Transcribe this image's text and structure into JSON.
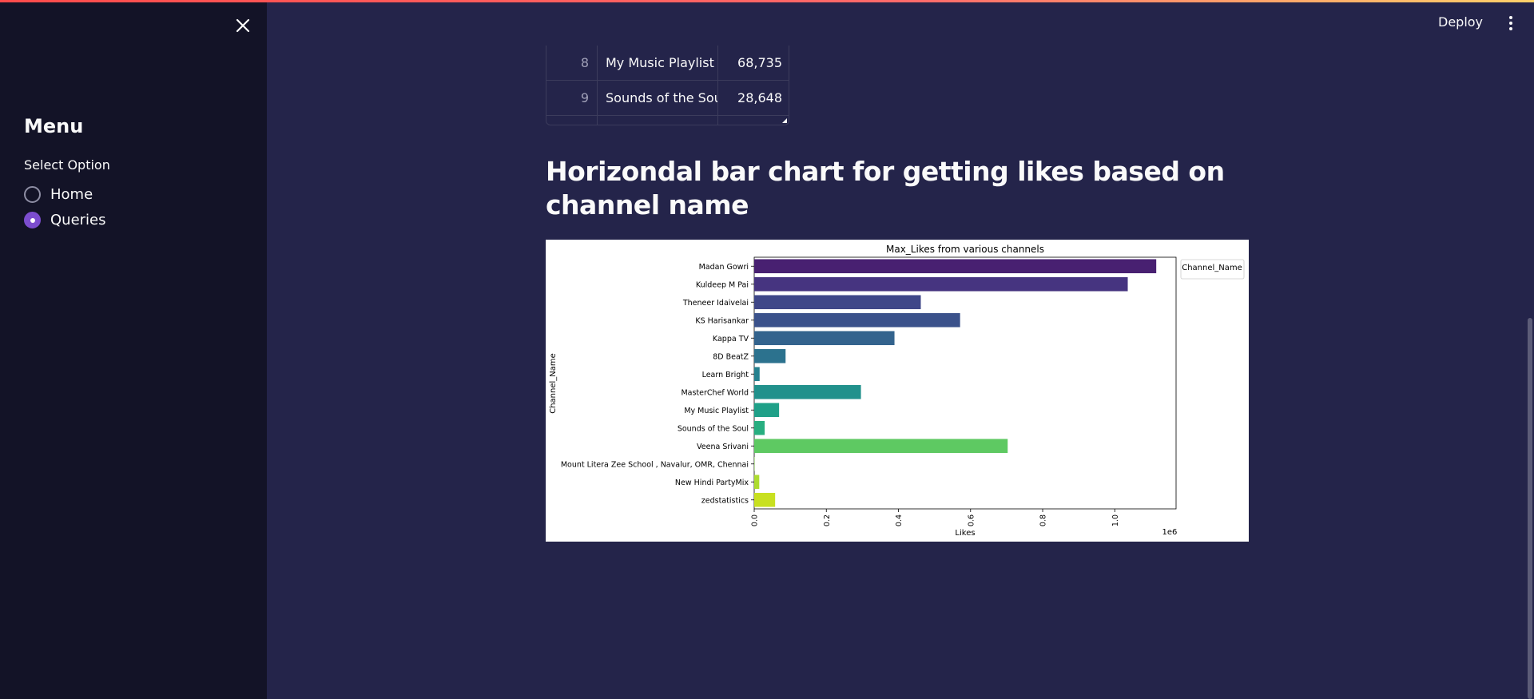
{
  "sidebar": {
    "title": "Menu",
    "select_label": "Select Option",
    "options": [
      {
        "label": "Home",
        "selected": false
      },
      {
        "label": "Queries",
        "selected": true
      }
    ]
  },
  "header": {
    "deploy_label": "Deploy"
  },
  "table": {
    "rows": [
      {
        "index": "8",
        "channel": "My Music Playlist",
        "likes": "68,735"
      },
      {
        "index": "9",
        "channel": "Sounds of the Soul",
        "likes": "28,648"
      }
    ]
  },
  "section_heading": "Horizondal bar chart for getting likes based on channel name",
  "colors": {
    "accent": "#7c4dcf",
    "background": "#24244a",
    "sidebar": "#131327"
  },
  "chart_data": {
    "type": "bar",
    "orientation": "horizontal",
    "title": "Max_Likes from various channels",
    "xlabel": "Likes",
    "ylabel": "Channel_Name",
    "x_scale_note": "1e6",
    "xlim": [
      0,
      1.17
    ],
    "xticks": [
      "0.0",
      "0.2",
      "0.4",
      "0.6",
      "0.8",
      "1.0"
    ],
    "legend_title": "Channel_Name",
    "legend_position": "outside-top-right",
    "categories": [
      "Madan Gowri",
      "Kuldeep M Pai",
      "Theneer Idaivelai",
      "KS Harisankar",
      "Kappa TV",
      "8D BeatZ",
      "Learn Bright",
      "MasterChef World",
      "My Music Playlist",
      "Sounds of the Soul",
      "Veena Srivani",
      "Mount Litera Zee School , Navalur, OMR, Chennai",
      "New Hindi PartyMix",
      "zedstatistics"
    ],
    "values": [
      1.115,
      1.036,
      0.462,
      0.571,
      0.389,
      0.087,
      0.015,
      0.296,
      0.069,
      0.029,
      0.703,
      0.001,
      0.014,
      0.058
    ],
    "bar_colors": [
      "#482071",
      "#463480",
      "#3f4788",
      "#3b528b",
      "#33638d",
      "#2c728e",
      "#26818e",
      "#21918c",
      "#1fa088",
      "#28ae80",
      "#5ec962",
      "#84d44b",
      "#addc30",
      "#c8e020"
    ]
  }
}
